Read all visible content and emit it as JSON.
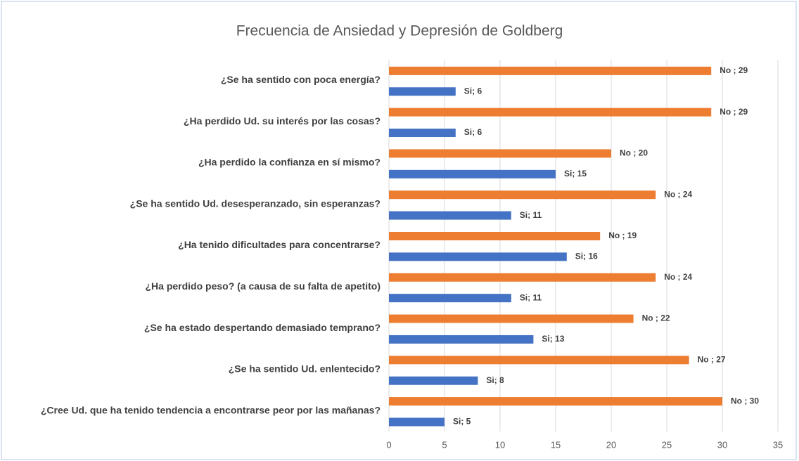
{
  "chart_data": {
    "type": "hbar",
    "title": "Frecuencia de Ansiedad y Depresión de Goldberg",
    "categories": [
      "¿Se ha sentido con poca energía?",
      "¿Ha perdido Ud. su interés por las cosas?",
      "¿Ha perdido la confianza en sí mismo?",
      "¿Se ha sentido Ud. desesperanzado, sin esperanzas?",
      "¿Ha tenido dificultades para concentrarse?",
      "¿Ha perdido peso? (a causa de su falta de apetito)",
      "¿Se ha estado despertando demasiado temprano?",
      "¿Se ha sentido Ud. enlentecido?",
      "¿Cree Ud. que ha tenido tendencia a encontrarse peor por las mañanas?"
    ],
    "series": [
      {
        "color": "#ed7d31",
        "values": [
          29,
          29,
          20,
          24,
          19,
          24,
          22,
          27,
          30
        ],
        "value_labels": [
          "No ; 29",
          "No ; 29",
          "No ; 20",
          "No ; 24",
          "No ; 19",
          "No ; 24",
          "No ; 22",
          "No ; 27",
          "No ; 30"
        ]
      },
      {
        "color": "#4472c4",
        "values": [
          6,
          6,
          15,
          11,
          16,
          11,
          13,
          8,
          5
        ],
        "value_labels": [
          "Si; 6",
          "Si; 6",
          "Si; 15",
          "Si; 11",
          "Si; 16",
          "Si; 11",
          "Si; 13",
          "Si; 8",
          "Si; 5"
        ]
      }
    ],
    "xlim": [
      0,
      35
    ],
    "xticks": [
      0,
      5,
      10,
      15,
      20,
      25,
      30,
      35
    ],
    "grid": true
  }
}
